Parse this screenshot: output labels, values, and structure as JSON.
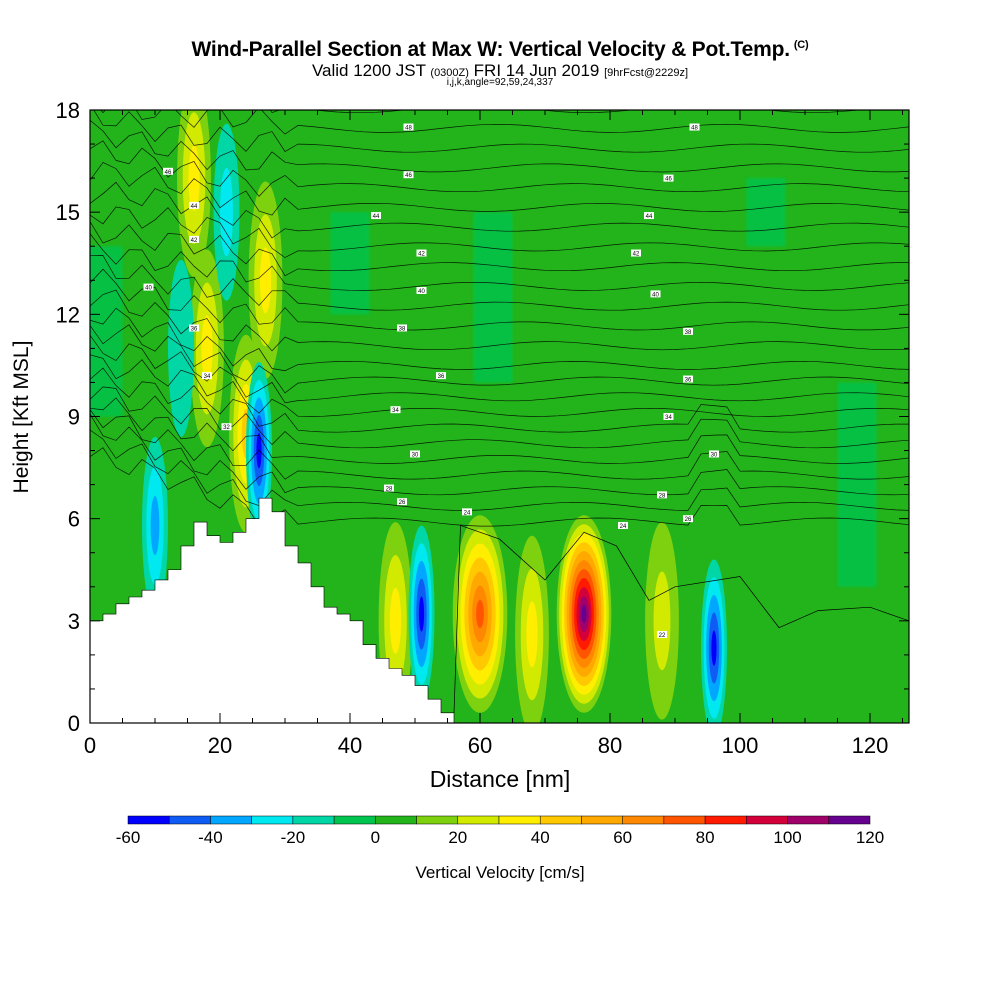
{
  "title": {
    "main": "Wind-Parallel Section at Max W: Vertical Velocity & Pot.Temp.",
    "copyright": "(C)",
    "valid_prefix": "Valid 1200 JST",
    "valid_utc": "(0300Z)",
    "valid_date": "FRI 14 Jun 2019",
    "forecast": "[9hrFcst@2229z]",
    "params": "i,j,k,angle=92,59,24,337"
  },
  "chart_data": {
    "type": "heatmap",
    "xlabel": "Distance [nm]",
    "ylabel": "Height [Kft MSL]",
    "xlim": [
      0,
      126
    ],
    "ylim": [
      0,
      18
    ],
    "x_ticks": [
      0,
      20,
      40,
      60,
      80,
      100,
      120
    ],
    "y_ticks": [
      0,
      3,
      6,
      9,
      12,
      15,
      18
    ],
    "colorbar": {
      "label": "Vertical Velocity [cm/s]",
      "ticks": [
        -60,
        -40,
        -20,
        0,
        20,
        40,
        60,
        80,
        100,
        120
      ],
      "bins": [
        {
          "from": -60,
          "to": -50,
          "color": "#0000ff"
        },
        {
          "from": -50,
          "to": -40,
          "color": "#0f5cf5"
        },
        {
          "from": -40,
          "to": -30,
          "color": "#00a6ff"
        },
        {
          "from": -30,
          "to": -20,
          "color": "#00e8f0"
        },
        {
          "from": -20,
          "to": -10,
          "color": "#00d6a6"
        },
        {
          "from": -10,
          "to": 0,
          "color": "#00c450"
        },
        {
          "from": 0,
          "to": 10,
          "color": "#22b41a"
        },
        {
          "from": 10,
          "to": 20,
          "color": "#7ed10e"
        },
        {
          "from": 20,
          "to": 30,
          "color": "#d2ea00"
        },
        {
          "from": 30,
          "to": 40,
          "color": "#ffee00"
        },
        {
          "from": 40,
          "to": 50,
          "color": "#ffc800"
        },
        {
          "from": 50,
          "to": 60,
          "color": "#ffa800"
        },
        {
          "from": 60,
          "to": 70,
          "color": "#ff8800"
        },
        {
          "from": 70,
          "to": 80,
          "color": "#ff5500"
        },
        {
          "from": 80,
          "to": 90,
          "color": "#ff1a00"
        },
        {
          "from": 90,
          "to": 100,
          "color": "#d4003a"
        },
        {
          "from": 100,
          "to": 110,
          "color": "#a0006a"
        },
        {
          "from": 110,
          "to": 120,
          "color": "#66008f"
        }
      ]
    },
    "background_value": 5,
    "features": [
      {
        "kind": "updraft",
        "x": 76,
        "z": 3.2,
        "peak_cm_s": 115
      },
      {
        "kind": "updraft",
        "x": 60,
        "z": 3.2,
        "peak_cm_s": 78
      },
      {
        "kind": "updraft",
        "x": 68,
        "z": 2.6,
        "peak_cm_s": 36
      },
      {
        "kind": "updraft",
        "x": 88,
        "z": 3.0,
        "peak_cm_s": 28
      },
      {
        "kind": "updraft",
        "x": 47,
        "z": 3.0,
        "peak_cm_s": 35
      },
      {
        "kind": "updraft",
        "x": 24,
        "z": 8.5,
        "peak_cm_s": 40
      },
      {
        "kind": "updraft",
        "x": 27,
        "z": 13.0,
        "peak_cm_s": 38
      },
      {
        "kind": "updraft",
        "x": 18,
        "z": 11.0,
        "peak_cm_s": 30
      },
      {
        "kind": "updraft",
        "x": 16,
        "z": 16.0,
        "peak_cm_s": 30
      },
      {
        "kind": "downdraft",
        "x": 51,
        "z": 3.2,
        "peak_cm_s": -55
      },
      {
        "kind": "downdraft",
        "x": 96,
        "z": 2.2,
        "peak_cm_s": -50
      },
      {
        "kind": "downdraft",
        "x": 10,
        "z": 5.8,
        "peak_cm_s": -38
      },
      {
        "kind": "downdraft",
        "x": 26,
        "z": 8.0,
        "peak_cm_s": -50
      },
      {
        "kind": "downdraft",
        "x": 21,
        "z": 15.0,
        "peak_cm_s": -28
      },
      {
        "kind": "downdraft",
        "x": 14,
        "z": 11.0,
        "peak_cm_s": -15
      }
    ],
    "terrain": {
      "units": "Kft",
      "x": [
        0,
        2,
        4,
        6,
        8,
        10,
        12,
        14,
        16,
        18,
        20,
        22,
        24,
        26,
        28,
        30,
        32,
        34,
        36,
        38,
        40,
        42,
        44,
        46,
        48,
        50,
        52,
        54
      ],
      "height": [
        3.0,
        3.2,
        3.5,
        3.7,
        3.9,
        4.2,
        4.5,
        5.2,
        5.9,
        5.5,
        5.3,
        5.6,
        6.0,
        6.6,
        6.2,
        5.2,
        4.7,
        4.0,
        3.4,
        3.2,
        3.0,
        2.3,
        1.9,
        1.6,
        1.4,
        1.1,
        0.7,
        0.3
      ]
    },
    "isentrope_labels": [
      {
        "text": "48",
        "x": 49,
        "z": 17.5
      },
      {
        "text": "48",
        "x": 93,
        "z": 17.5
      },
      {
        "text": "46",
        "x": 49,
        "z": 16.1
      },
      {
        "text": "46",
        "x": 89,
        "z": 16.0
      },
      {
        "text": "46",
        "x": 12,
        "z": 16.2
      },
      {
        "text": "44",
        "x": 44,
        "z": 14.9
      },
      {
        "text": "44",
        "x": 86,
        "z": 14.9
      },
      {
        "text": "44",
        "x": 16,
        "z": 15.2
      },
      {
        "text": "42",
        "x": 51,
        "z": 13.8
      },
      {
        "text": "42",
        "x": 84,
        "z": 13.8
      },
      {
        "text": "42",
        "x": 16,
        "z": 14.2
      },
      {
        "text": "40",
        "x": 51,
        "z": 12.7
      },
      {
        "text": "40",
        "x": 87,
        "z": 12.6
      },
      {
        "text": "40",
        "x": 9,
        "z": 12.8
      },
      {
        "text": "38",
        "x": 48,
        "z": 11.6
      },
      {
        "text": "38",
        "x": 92,
        "z": 11.5
      },
      {
        "text": "36",
        "x": 16,
        "z": 11.6
      },
      {
        "text": "36",
        "x": 54,
        "z": 10.2
      },
      {
        "text": "36",
        "x": 92,
        "z": 10.1
      },
      {
        "text": "34",
        "x": 18,
        "z": 10.2
      },
      {
        "text": "34",
        "x": 47,
        "z": 9.2
      },
      {
        "text": "34",
        "x": 89,
        "z": 9.0
      },
      {
        "text": "32",
        "x": 21,
        "z": 8.7
      },
      {
        "text": "30",
        "x": 50,
        "z": 7.9
      },
      {
        "text": "30",
        "x": 96,
        "z": 7.9
      },
      {
        "text": "28",
        "x": 46,
        "z": 6.9
      },
      {
        "text": "28",
        "x": 88,
        "z": 6.7
      },
      {
        "text": "26",
        "x": 48,
        "z": 6.5
      },
      {
        "text": "26",
        "x": 92,
        "z": 6.0
      },
      {
        "text": "24",
        "x": 58,
        "z": 6.2
      },
      {
        "text": "24",
        "x": 82,
        "z": 5.8
      },
      {
        "text": "22",
        "x": 88,
        "z": 2.6
      }
    ]
  }
}
